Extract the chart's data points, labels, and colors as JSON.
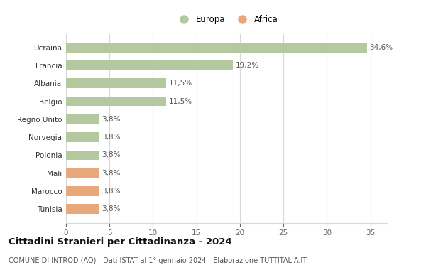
{
  "categories": [
    "Tunisia",
    "Marocco",
    "Mali",
    "Polonia",
    "Norvegia",
    "Regno Unito",
    "Belgio",
    "Albania",
    "Francia",
    "Ucraina"
  ],
  "values": [
    3.8,
    3.8,
    3.8,
    3.8,
    3.8,
    3.8,
    11.5,
    11.5,
    19.2,
    34.6
  ],
  "labels": [
    "3,8%",
    "3,8%",
    "3,8%",
    "3,8%",
    "3,8%",
    "3,8%",
    "11,5%",
    "11,5%",
    "19,2%",
    "34,6%"
  ],
  "continent": [
    "Africa",
    "Africa",
    "Africa",
    "Europa",
    "Europa",
    "Europa",
    "Europa",
    "Europa",
    "Europa",
    "Europa"
  ],
  "europa_color": "#b5c9a0",
  "africa_color": "#e8a87c",
  "background_color": "#ffffff",
  "grid_color": "#d8d8d8",
  "title": "Cittadini Stranieri per Cittadinanza - 2024",
  "subtitle": "COMUNE DI INTROD (AO) - Dati ISTAT al 1° gennaio 2024 - Elaborazione TUTTITALIA.IT",
  "xlim": [
    0,
    37
  ],
  "xticks": [
    0,
    5,
    10,
    15,
    20,
    25,
    30,
    35
  ],
  "legend_europa": "Europa",
  "legend_africa": "Africa",
  "bar_height": 0.55,
  "label_fontsize": 7.5,
  "tick_fontsize": 7.5,
  "title_fontsize": 9.5,
  "subtitle_fontsize": 7.0,
  "legend_fontsize": 8.5
}
